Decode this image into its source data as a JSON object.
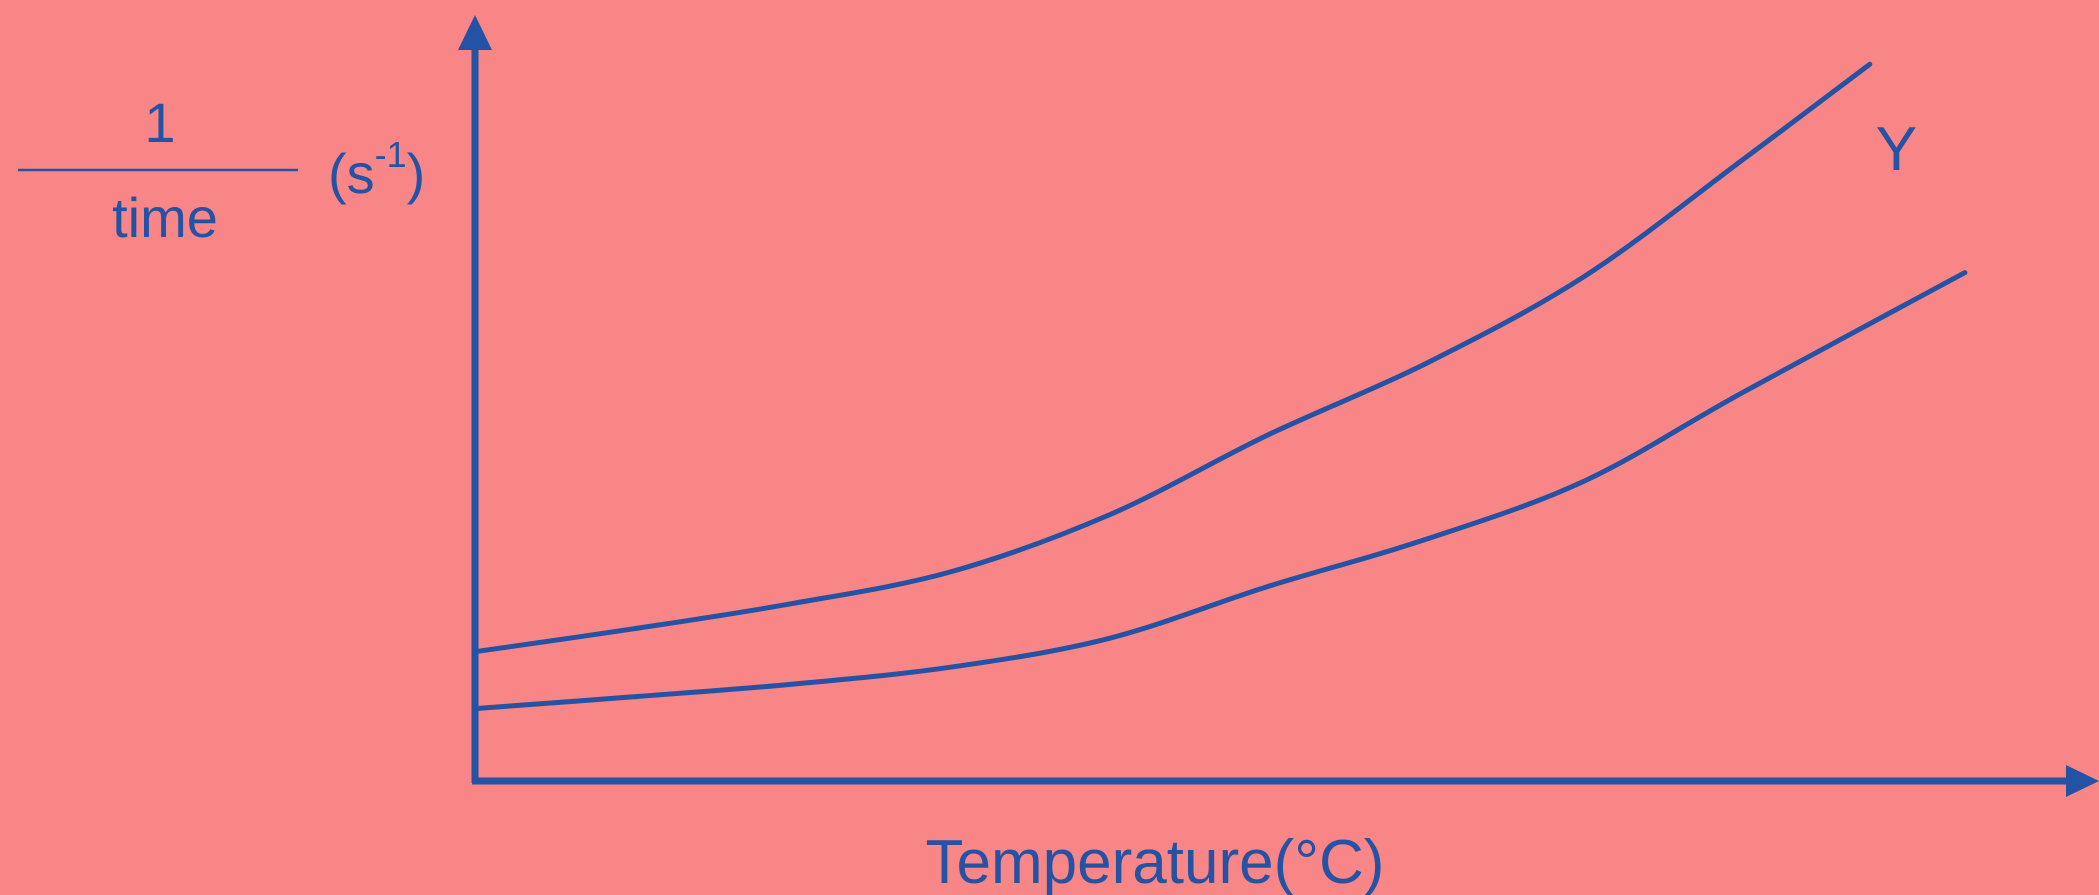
{
  "colors": {
    "background": "#F88686",
    "ink": "#2452A4"
  },
  "chart_data": {
    "type": "line",
    "title": "",
    "xlabel": "Temperature(°C)",
    "ylabel": {
      "numerator": "1",
      "denominator": "time",
      "unit_base": "(s",
      "unit_exp": "-1",
      "unit_close": ")"
    },
    "grid": false,
    "xlim": [
      0,
      100
    ],
    "ylim": [
      0,
      100
    ],
    "series": [
      {
        "name": "Y",
        "points": [
          [
            0,
            17.5
          ],
          [
            10,
            20.6
          ],
          [
            20,
            24.0
          ],
          [
            30,
            28.3
          ],
          [
            40,
            36.0
          ],
          [
            50,
            46.8
          ],
          [
            60,
            56.5
          ],
          [
            70,
            68.3
          ],
          [
            80,
            84.1
          ],
          [
            88,
            97.0
          ]
        ]
      },
      {
        "name": "",
        "points": [
          [
            0,
            9.8
          ],
          [
            10,
            11.4
          ],
          [
            20,
            13.1
          ],
          [
            30,
            15.4
          ],
          [
            40,
            19.3
          ],
          [
            50,
            26.3
          ],
          [
            60,
            32.7
          ],
          [
            70,
            40.6
          ],
          [
            80,
            52.6
          ],
          [
            94,
            68.8
          ]
        ]
      }
    ]
  }
}
